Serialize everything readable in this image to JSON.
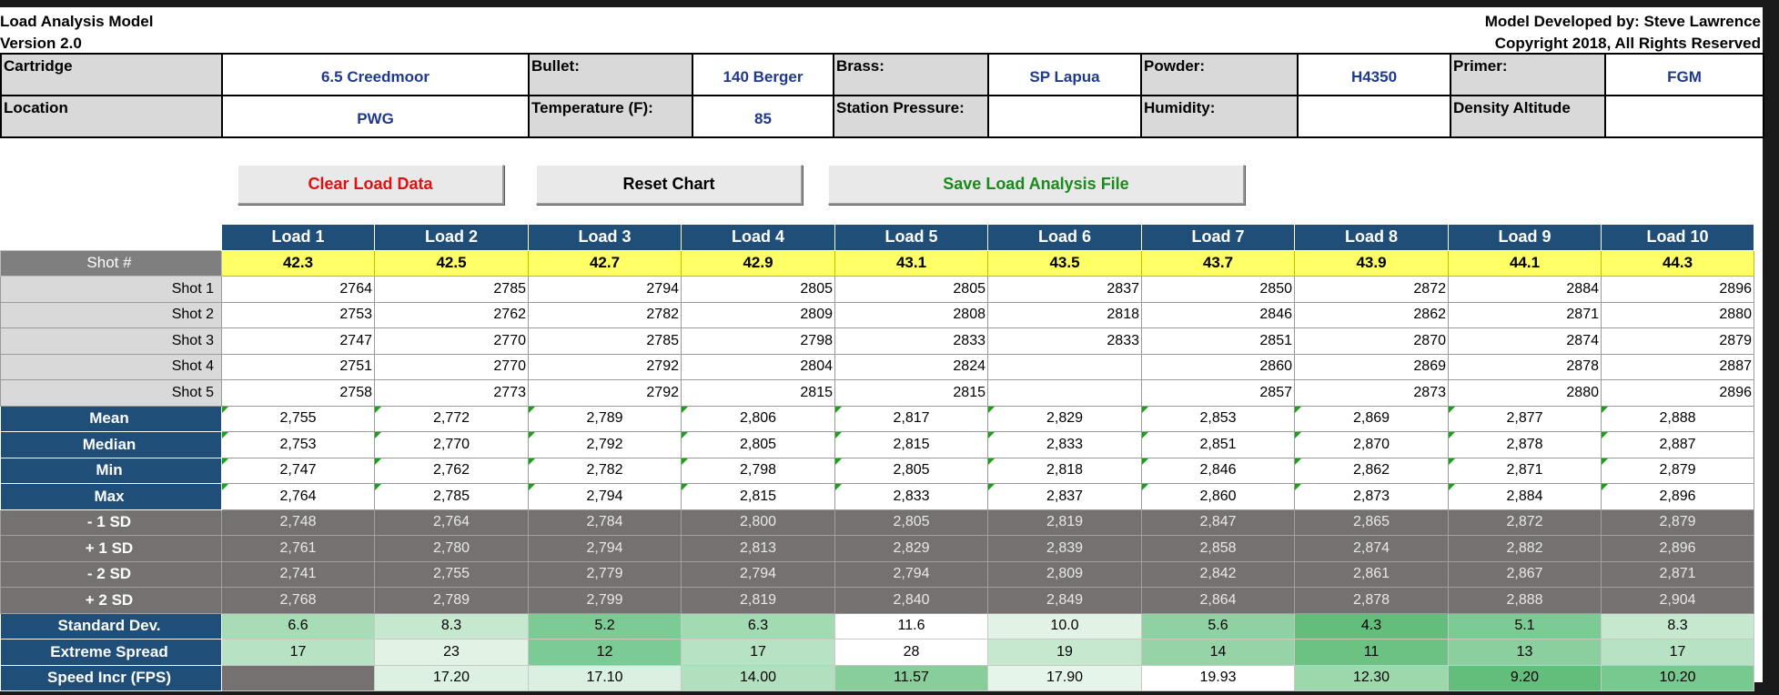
{
  "header": {
    "title": "Load Analysis Model",
    "version": "Version 2.0",
    "developer": "Model Developed by: Steve Lawrence",
    "copyright": "Copyright 2018, All Rights Reserved"
  },
  "info": {
    "cartridge_label": "Cartridge",
    "cartridge_value": "6.5 Creedmoor",
    "bullet_label": "Bullet:",
    "bullet_value": "140 Berger",
    "brass_label": "Brass:",
    "brass_value": "SP Lapua",
    "powder_label": "Powder:",
    "powder_value": "H4350",
    "primer_label": "Primer:",
    "primer_value": "FGM",
    "location_label": "Location",
    "location_value": "PWG",
    "temperature_label": "Temperature (F):",
    "temperature_value": "85",
    "station_pressure_label": "Station Pressure:",
    "station_pressure_value": "",
    "humidity_label": "Humidity:",
    "humidity_value": "",
    "density_altitude_label": "Density Altitude",
    "density_altitude_value": ""
  },
  "buttons": {
    "clear": "Clear Load Data",
    "reset": "Reset Chart",
    "save": "Save Load Analysis File"
  },
  "grid": {
    "loads": [
      "Load 1",
      "Load 2",
      "Load 3",
      "Load 4",
      "Load 5",
      "Load 6",
      "Load 7",
      "Load 8",
      "Load 9",
      "Load 10"
    ],
    "shot_label": "Shot #",
    "charges": [
      "42.3",
      "42.5",
      "42.7",
      "42.9",
      "43.1",
      "43.5",
      "43.7",
      "43.9",
      "44.1",
      "44.3"
    ],
    "shots": [
      {
        "label": "Shot 1",
        "values": [
          "2764",
          "2785",
          "2794",
          "2805",
          "2805",
          "2837",
          "2850",
          "2872",
          "2884",
          "2896"
        ]
      },
      {
        "label": "Shot 2",
        "values": [
          "2753",
          "2762",
          "2782",
          "2809",
          "2808",
          "2818",
          "2846",
          "2862",
          "2871",
          "2880"
        ]
      },
      {
        "label": "Shot 3",
        "values": [
          "2747",
          "2770",
          "2785",
          "2798",
          "2833",
          "2833",
          "2851",
          "2870",
          "2874",
          "2879"
        ]
      },
      {
        "label": "Shot 4",
        "values": [
          "2751",
          "2770",
          "2792",
          "2804",
          "2824",
          "",
          "2860",
          "2869",
          "2878",
          "2887"
        ]
      },
      {
        "label": "Shot 5",
        "values": [
          "2758",
          "2773",
          "2792",
          "2815",
          "2815",
          "",
          "2857",
          "2873",
          "2880",
          "2896"
        ]
      }
    ],
    "stats": [
      {
        "label": "Mean",
        "values": [
          "2,755",
          "2,772",
          "2,789",
          "2,806",
          "2,817",
          "2,829",
          "2,853",
          "2,869",
          "2,877",
          "2,888"
        ]
      },
      {
        "label": "Median",
        "values": [
          "2,753",
          "2,770",
          "2,792",
          "2,805",
          "2,815",
          "2,833",
          "2,851",
          "2,870",
          "2,878",
          "2,887"
        ]
      },
      {
        "label": "Min",
        "values": [
          "2,747",
          "2,762",
          "2,782",
          "2,798",
          "2,805",
          "2,818",
          "2,846",
          "2,862",
          "2,871",
          "2,879"
        ]
      },
      {
        "label": "Max",
        "values": [
          "2,764",
          "2,785",
          "2,794",
          "2,815",
          "2,833",
          "2,837",
          "2,860",
          "2,873",
          "2,884",
          "2,896"
        ]
      }
    ],
    "sd_rows": [
      {
        "label": "- 1 SD",
        "values": [
          "2,748",
          "2,764",
          "2,784",
          "2,800",
          "2,805",
          "2,819",
          "2,847",
          "2,865",
          "2,872",
          "2,879"
        ]
      },
      {
        "label": "+ 1 SD",
        "values": [
          "2,761",
          "2,780",
          "2,794",
          "2,813",
          "2,829",
          "2,839",
          "2,858",
          "2,874",
          "2,882",
          "2,896"
        ]
      },
      {
        "label": "- 2 SD",
        "values": [
          "2,741",
          "2,755",
          "2,779",
          "2,794",
          "2,794",
          "2,809",
          "2,842",
          "2,861",
          "2,867",
          "2,871"
        ]
      },
      {
        "label": "+ 2 SD",
        "values": [
          "2,768",
          "2,789",
          "2,799",
          "2,819",
          "2,840",
          "2,849",
          "2,864",
          "2,878",
          "2,888",
          "2,904"
        ]
      }
    ],
    "heat_rows": [
      {
        "label": "Standard Dev.",
        "values": [
          "6.6",
          "8.3",
          "5.2",
          "6.3",
          "11.6",
          "10.0",
          "5.6",
          "4.3",
          "5.1",
          "8.3"
        ],
        "colors": [
          "#a8dcb7",
          "#c6e8cf",
          "#7ccb94",
          "#a2dab2",
          "#ffffff",
          "#e2f3e6",
          "#8fd1a2",
          "#63be7b",
          "#7ccb94",
          "#c6e8cf"
        ]
      },
      {
        "label": "Extreme Spread",
        "values": [
          "17",
          "23",
          "12",
          "17",
          "28",
          "19",
          "14",
          "11",
          "13",
          "17"
        ],
        "colors": [
          "#b7e2c3",
          "#e2f3e6",
          "#7ccb94",
          "#b7e2c3",
          "#ffffff",
          "#c6e8cf",
          "#96d4a8",
          "#6cc283",
          "#8bcf9e",
          "#b7e2c3"
        ]
      },
      {
        "label": "Speed Incr (FPS)",
        "values": [
          "",
          "17.20",
          "17.10",
          "14.00",
          "11.57",
          "17.90",
          "19.93",
          "12.30",
          "9.20",
          "10.20"
        ],
        "colors": [
          "",
          "#dcf1e2",
          "#dbf0e1",
          "#b2e0bf",
          "#88ce9b",
          "#e6f5ea",
          "#ffffff",
          "#9dd8ad",
          "#63be7b",
          "#78c98f"
        ]
      }
    ]
  }
}
